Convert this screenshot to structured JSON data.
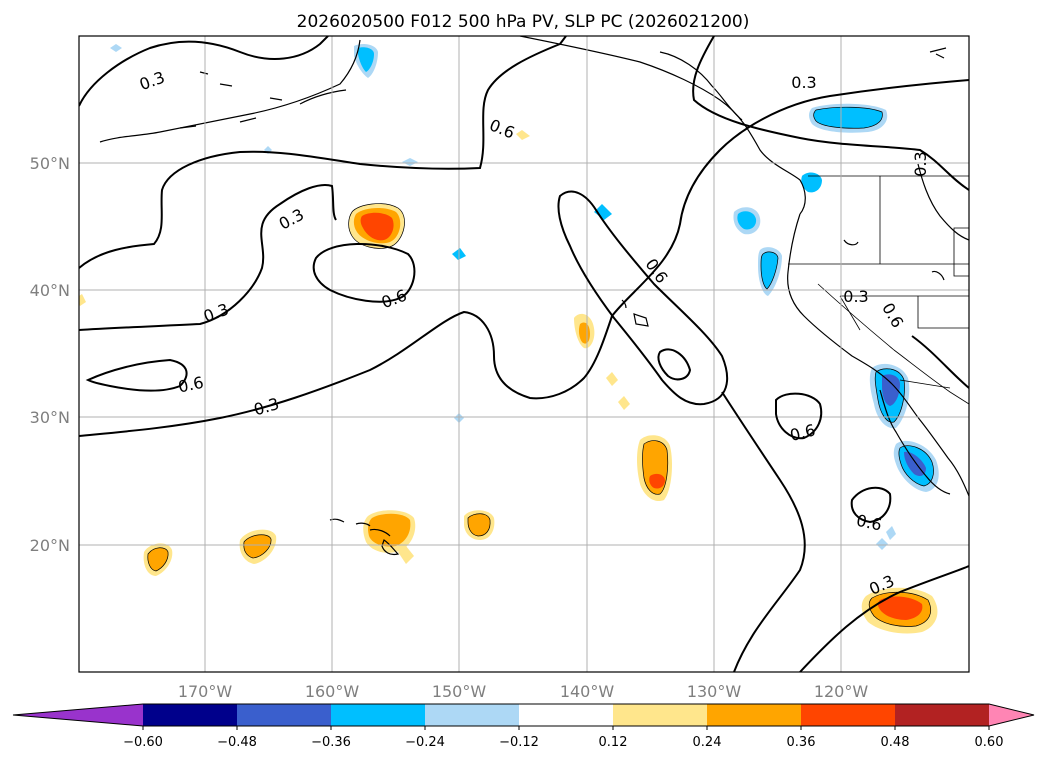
{
  "title": "2026020500 F012 500 hPa PV, SLP PC (2026021200)",
  "chart_data": {
    "type": "map",
    "title": "2026020500 F012 500 hPa PV, SLP PC (2026021200)",
    "longitude_ticks": [
      "170°W",
      "160°W",
      "150°W",
      "140°W",
      "130°W",
      "120°W"
    ],
    "latitude_ticks": [
      "50°N",
      "40°N",
      "30°N",
      "20°N"
    ],
    "grid": true,
    "colorbar": {
      "extend": "both",
      "levels": [
        -0.6,
        -0.48,
        -0.36,
        -0.24,
        -0.12,
        0.12,
        0.24,
        0.36,
        0.48,
        0.6
      ],
      "tick_labels": [
        "−0.60",
        "−0.48",
        "−0.36",
        "−0.24",
        "−0.12",
        "0.12",
        "0.24",
        "0.36",
        "0.48",
        "0.60"
      ],
      "colors": [
        "#9933cc",
        "#00008b",
        "#3a5fcd",
        "#00bfff",
        "#add8f5",
        "#ffffff",
        "#ffe68c",
        "#ffa500",
        "#ff4500",
        "#b22222",
        "#ff85b4"
      ]
    },
    "contour_labels": [
      "0.3",
      "0.6",
      "0.3",
      "0.6",
      "0.6",
      "0.3",
      "0.6",
      "0.3",
      "0.6",
      "0.3",
      "0.3",
      "0.3",
      "0.6",
      "0.6",
      "0.3"
    ]
  }
}
